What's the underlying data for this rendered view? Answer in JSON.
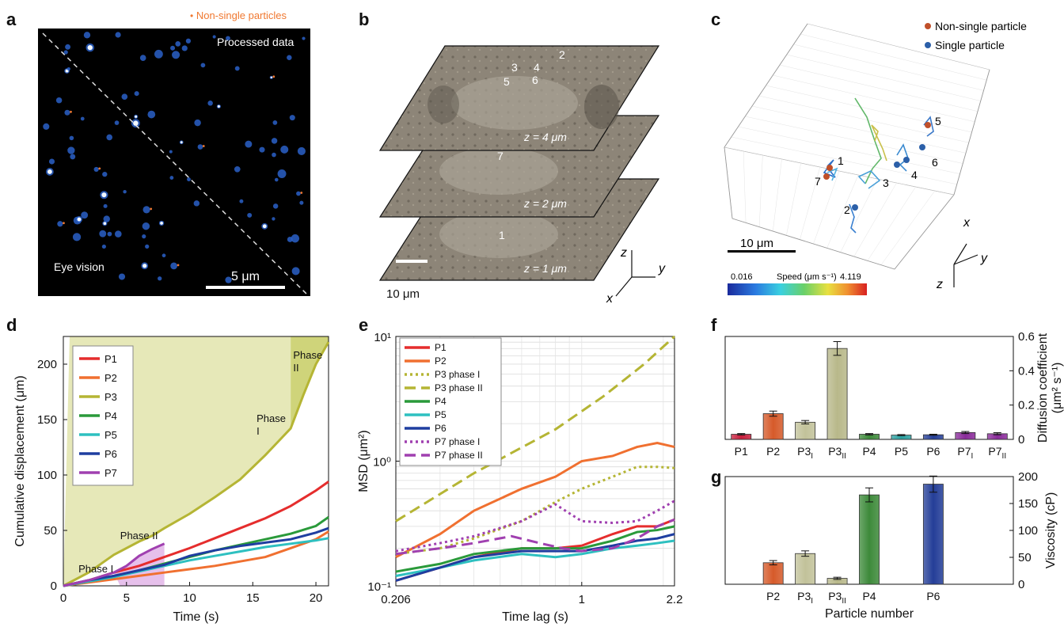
{
  "panels": {
    "a": {
      "letter": "a",
      "legend_label": "Non-single particles",
      "processed_label": "Processed data",
      "eye_label": "Eye vision",
      "scale_label": "5 μm"
    },
    "b": {
      "letter": "b",
      "numbers": [
        "2",
        "3",
        "4",
        "5",
        "6",
        "7",
        "1"
      ],
      "z_labels": [
        "z = 4 μm",
        "z = 2 μm",
        "z = 1 μm"
      ],
      "scale_label": "10 μm",
      "axes": {
        "z": "z",
        "y": "y",
        "x": "x"
      }
    },
    "c": {
      "letter": "c",
      "legend": [
        {
          "label": "Non-single particle",
          "color": "#c0502a"
        },
        {
          "label": "Single particle",
          "color": "#2b5fa8"
        }
      ],
      "numbers": [
        "1",
        "2",
        "3",
        "4",
        "5",
        "6",
        "7"
      ],
      "scale_label": "10 μm",
      "speed_min": "0.016",
      "speed_max": "4.119",
      "speed_label": "Speed (μm s⁻¹)",
      "axes": {
        "x": "x",
        "y": "y",
        "z": "z"
      }
    },
    "d": {
      "letter": "d"
    },
    "e": {
      "letter": "e"
    },
    "f": {
      "letter": "f"
    },
    "g": {
      "letter": "g"
    }
  },
  "chart_data": [
    {
      "id": "d",
      "type": "line",
      "xlabel": "Time (s)",
      "ylabel": "Cumulative displacement (μm)",
      "xlim": [
        0,
        21
      ],
      "ylim": [
        0,
        225
      ],
      "xticks": [
        0,
        5,
        10,
        15,
        20
      ],
      "yticks": [
        0,
        50,
        100,
        150,
        200
      ],
      "annotations": [
        "Phase I",
        "Phase II",
        "Phase I",
        "Phase II"
      ],
      "series": [
        {
          "name": "P1",
          "color": "#e52d2d",
          "x": [
            0,
            2,
            4,
            6,
            8,
            10,
            12,
            14,
            16,
            18,
            20,
            21
          ],
          "y": [
            0,
            5,
            12,
            18,
            26,
            34,
            43,
            52,
            61,
            72,
            86,
            94
          ]
        },
        {
          "name": "P2",
          "color": "#f07030",
          "x": [
            0,
            2,
            4,
            6,
            8,
            10,
            12,
            14,
            16,
            18,
            20,
            21
          ],
          "y": [
            0,
            3,
            6,
            9,
            12,
            15,
            18,
            22,
            26,
            34,
            42,
            49
          ]
        },
        {
          "name": "P3",
          "color": "#b5b534",
          "x": [
            0,
            2,
            4,
            6,
            7,
            8,
            10,
            12,
            14,
            16,
            17,
            18,
            19,
            20,
            21
          ],
          "y": [
            0,
            12,
            28,
            40,
            45,
            52,
            65,
            80,
            96,
            118,
            130,
            142,
            172,
            200,
            220
          ]
        },
        {
          "name": "P4",
          "color": "#2a9a3a",
          "x": [
            0,
            2,
            4,
            6,
            8,
            10,
            12,
            14,
            16,
            18,
            20,
            21
          ],
          "y": [
            0,
            4,
            8,
            14,
            20,
            26,
            32,
            37,
            42,
            47,
            54,
            62
          ]
        },
        {
          "name": "P5",
          "color": "#2ec0c0",
          "x": [
            0,
            2,
            4,
            6,
            8,
            10,
            12,
            14,
            16,
            18,
            20,
            21
          ],
          "y": [
            0,
            4,
            8,
            13,
            18,
            23,
            27,
            31,
            35,
            38,
            41,
            43
          ]
        },
        {
          "name": "P6",
          "color": "#1f3ea0",
          "x": [
            0,
            2,
            4,
            6,
            8,
            10,
            12,
            14,
            16,
            18,
            20,
            21
          ],
          "y": [
            0,
            5,
            9,
            14,
            19,
            27,
            32,
            36,
            39,
            42,
            48,
            52
          ]
        },
        {
          "name": "P7",
          "color": "#a040b0",
          "x": [
            0,
            2,
            4,
            5,
            6,
            7,
            8
          ],
          "y": [
            0,
            5,
            12,
            18,
            27,
            33,
            38
          ]
        }
      ]
    },
    {
      "id": "e",
      "type": "line",
      "xlabel": "Time lag (s)",
      "ylabel": "MSD (μm²)",
      "xscale": "log",
      "yscale": "log",
      "xlim": [
        0.206,
        2.2
      ],
      "ylim": [
        0.1,
        10
      ],
      "xticks": [
        "0.206",
        "1",
        "2.2"
      ],
      "yticks": [
        "10⁻¹",
        "10⁰",
        "10¹"
      ],
      "series": [
        {
          "name": "P1",
          "color": "#e52d2d",
          "dash": "solid",
          "x": [
            0.206,
            0.3,
            0.4,
            0.6,
            0.8,
            1.0,
            1.3,
            1.6,
            1.9,
            2.2
          ],
          "y": [
            0.11,
            0.14,
            0.17,
            0.2,
            0.2,
            0.21,
            0.26,
            0.3,
            0.3,
            0.34
          ]
        },
        {
          "name": "P2",
          "color": "#f07030",
          "dash": "solid",
          "x": [
            0.206,
            0.3,
            0.4,
            0.6,
            0.8,
            1.0,
            1.3,
            1.6,
            1.9,
            2.2
          ],
          "y": [
            0.17,
            0.26,
            0.4,
            0.6,
            0.75,
            1.0,
            1.1,
            1.3,
            1.4,
            1.3
          ]
        },
        {
          "name": "P3 phase I",
          "color": "#b5b534",
          "dash": "dot",
          "x": [
            0.206,
            0.3,
            0.4,
            0.6,
            0.8,
            1.0,
            1.3,
            1.6,
            1.9,
            2.2
          ],
          "y": [
            0.18,
            0.2,
            0.24,
            0.33,
            0.47,
            0.6,
            0.75,
            0.9,
            0.9,
            0.88
          ]
        },
        {
          "name": "P3 phase II",
          "color": "#b5b534",
          "dash": "dash",
          "x": [
            0.206,
            0.4,
            0.8,
            1.2,
            1.7,
            2.2
          ],
          "y": [
            0.33,
            0.8,
            1.8,
            3.3,
            6.0,
            10.0
          ]
        },
        {
          "name": "P4",
          "color": "#2a9a3a",
          "dash": "solid",
          "x": [
            0.206,
            0.3,
            0.4,
            0.6,
            0.8,
            1.0,
            1.3,
            1.6,
            1.9,
            2.2
          ],
          "y": [
            0.13,
            0.15,
            0.18,
            0.2,
            0.2,
            0.2,
            0.23,
            0.27,
            0.28,
            0.3
          ]
        },
        {
          "name": "P5",
          "color": "#2ec0c0",
          "dash": "solid",
          "x": [
            0.206,
            0.3,
            0.4,
            0.6,
            0.8,
            1.0,
            1.3,
            1.6,
            1.9,
            2.2
          ],
          "y": [
            0.12,
            0.14,
            0.16,
            0.18,
            0.17,
            0.18,
            0.2,
            0.21,
            0.22,
            0.23
          ]
        },
        {
          "name": "P6",
          "color": "#1f3ea0",
          "dash": "solid",
          "x": [
            0.206,
            0.3,
            0.4,
            0.6,
            0.8,
            1.0,
            1.3,
            1.6,
            1.9,
            2.2
          ],
          "y": [
            0.11,
            0.14,
            0.17,
            0.19,
            0.19,
            0.19,
            0.21,
            0.23,
            0.24,
            0.26
          ]
        },
        {
          "name": "P7 phase I",
          "color": "#a040b0",
          "dash": "dot",
          "x": [
            0.206,
            0.3,
            0.4,
            0.6,
            0.8,
            1.0,
            1.3,
            1.6,
            1.9,
            2.2
          ],
          "y": [
            0.19,
            0.22,
            0.25,
            0.33,
            0.45,
            0.33,
            0.32,
            0.33,
            0.4,
            0.48
          ]
        },
        {
          "name": "P7 phase II",
          "color": "#a040b0",
          "dash": "dash",
          "x": [
            0.206,
            0.3,
            0.4,
            0.55,
            0.7,
            0.85,
            1.0,
            1.3,
            1.6,
            1.9,
            2.2
          ],
          "y": [
            0.18,
            0.2,
            0.22,
            0.25,
            0.22,
            0.2,
            0.19,
            0.2,
            0.24,
            0.3,
            0.34
          ]
        }
      ]
    },
    {
      "id": "f",
      "type": "bar",
      "xlabel": "",
      "ylabel": "Diffusion coefficient (μm² s⁻¹)",
      "ylim": [
        0,
        0.6
      ],
      "yticks": [
        0,
        0.2,
        0.4,
        0.6
      ],
      "categories": [
        {
          "base": "P1",
          "sub": ""
        },
        {
          "base": "P2",
          "sub": ""
        },
        {
          "base": "P3",
          "sub": "I"
        },
        {
          "base": "P3",
          "sub": "II"
        },
        {
          "base": "P4",
          "sub": ""
        },
        {
          "base": "P5",
          "sub": ""
        },
        {
          "base": "P6",
          "sub": ""
        },
        {
          "base": "P7",
          "sub": "I"
        },
        {
          "base": "P7",
          "sub": "II"
        }
      ],
      "values": [
        0.03,
        0.15,
        0.1,
        0.53,
        0.03,
        0.025,
        0.027,
        0.04,
        0.033
      ],
      "errors": [
        0.004,
        0.015,
        0.01,
        0.04,
        0.004,
        0.003,
        0.003,
        0.006,
        0.006
      ],
      "colors": [
        "#c81e3c",
        "#d65a2a",
        "#c2c29a",
        "#b8b88a",
        "#3d8a3a",
        "#2aa0a0",
        "#243e98",
        "#8a2a9a",
        "#8a2a9a"
      ]
    },
    {
      "id": "g",
      "type": "bar",
      "xlabel": "Particle number",
      "ylabel": "Viscosity (cP)",
      "ylim": [
        0,
        200
      ],
      "yticks": [
        0,
        50,
        100,
        150,
        200
      ],
      "categories": [
        {
          "base": "",
          "sub": ""
        },
        {
          "base": "P2",
          "sub": ""
        },
        {
          "base": "P3",
          "sub": "I"
        },
        {
          "base": "P3",
          "sub": "II"
        },
        {
          "base": "P4",
          "sub": ""
        },
        {
          "base": "",
          "sub": ""
        },
        {
          "base": "P6",
          "sub": ""
        },
        {
          "base": "",
          "sub": ""
        },
        {
          "base": "",
          "sub": ""
        }
      ],
      "values": [
        null,
        40,
        57,
        11,
        166,
        null,
        186,
        null,
        null
      ],
      "errors": [
        null,
        4,
        5,
        2,
        13,
        null,
        15,
        null,
        null
      ],
      "colors": [
        "",
        "#d65a2a",
        "#c2c29a",
        "#b8b88a",
        "#3d8a3a",
        "",
        "#243e98",
        "",
        ""
      ]
    }
  ]
}
